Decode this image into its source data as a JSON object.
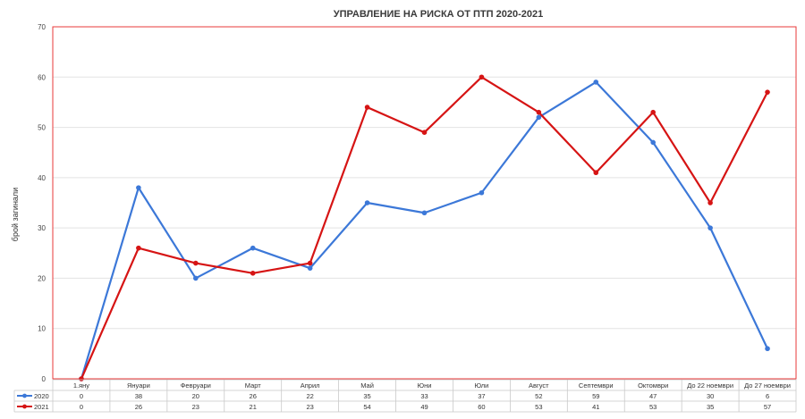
{
  "chart_data": {
    "type": "line",
    "title": "УПРАВЛЕНИЕ НА РИСКА ОТ ПТП  2020-2021",
    "ylabel": "брой загинали",
    "xlabel": "",
    "ylim": [
      0,
      70
    ],
    "yticks": [
      0,
      10,
      20,
      30,
      40,
      50,
      60,
      70
    ],
    "grid": true,
    "legend": "data-table",
    "categories": [
      "1.яну",
      "Януари",
      "Февруари",
      "Март",
      "Април",
      "Май",
      "Юни",
      "Юли",
      "Август",
      "Септември",
      "Октомври",
      "До 22 ноември",
      "До 27 ноември"
    ],
    "series": [
      {
        "name": "2020",
        "color": "#3c78d8",
        "values": [
          0,
          38,
          20,
          26,
          22,
          35,
          33,
          37,
          52,
          59,
          47,
          30,
          6
        ]
      },
      {
        "name": "2021",
        "color": "#d61414",
        "values": [
          0,
          26,
          23,
          21,
          23,
          54,
          49,
          60,
          53,
          41,
          53,
          35,
          57
        ]
      }
    ],
    "plot_border_color": "#e83a3a"
  }
}
